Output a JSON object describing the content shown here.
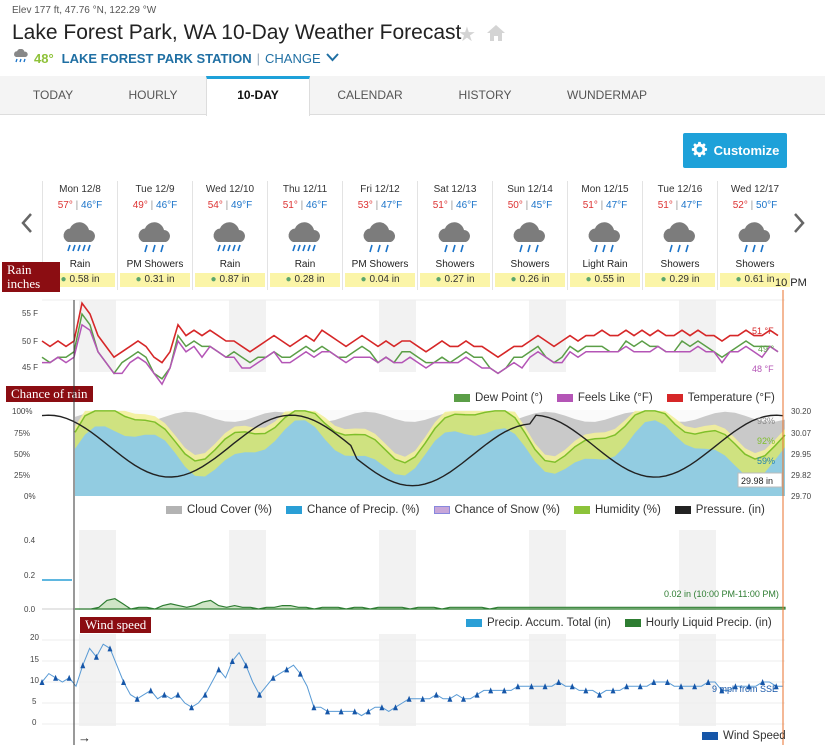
{
  "header": {
    "elev": "Elev 177 ft, 47.76 °N, 122.29 °W",
    "title": "Lake Forest Park, WA 10-Day Weather Forecast",
    "current_temp": "48°",
    "station": "LAKE FOREST PARK STATION",
    "separator": "|",
    "change_label": "CHANGE"
  },
  "tabs": [
    {
      "label": "TODAY",
      "active": false
    },
    {
      "label": "HOURLY",
      "active": false
    },
    {
      "label": "10-DAY",
      "active": true
    },
    {
      "label": "CALENDAR",
      "active": false
    },
    {
      "label": "HISTORY",
      "active": false
    },
    {
      "label": "WUNDERMAP",
      "active": false
    }
  ],
  "customize_label": "Customize",
  "days": [
    {
      "label": "Mon 12/8",
      "hi": "57°",
      "lo": "46°F",
      "cond": "Rain",
      "precip": "0.58 in",
      "icon": "rain-heavy-icon"
    },
    {
      "label": "Tue 12/9",
      "hi": "49°",
      "lo": "46°F",
      "cond": "PM Showers",
      "precip": "0.31 in",
      "icon": "showers-icon"
    },
    {
      "label": "Wed 12/10",
      "hi": "54°",
      "lo": "49°F",
      "cond": "Rain",
      "precip": "0.87 in",
      "icon": "rain-heavy-icon"
    },
    {
      "label": "Thu 12/11",
      "hi": "51°",
      "lo": "46°F",
      "cond": "Rain",
      "precip": "0.28 in",
      "icon": "rain-heavy-icon"
    },
    {
      "label": "Fri 12/12",
      "hi": "53°",
      "lo": "47°F",
      "cond": "PM Showers",
      "precip": "0.04 in",
      "icon": "showers-icon"
    },
    {
      "label": "Sat 12/13",
      "hi": "51°",
      "lo": "46°F",
      "cond": "Showers",
      "precip": "0.27 in",
      "icon": "showers-icon"
    },
    {
      "label": "Sun 12/14",
      "hi": "50°",
      "lo": "45°F",
      "cond": "Showers",
      "precip": "0.26 in",
      "icon": "showers-icon"
    },
    {
      "label": "Mon 12/15",
      "hi": "51°",
      "lo": "47°F",
      "cond": "Light Rain",
      "precip": "0.55 in",
      "icon": "showers-icon"
    },
    {
      "label": "Tue 12/16",
      "hi": "51°",
      "lo": "47°F",
      "cond": "Showers",
      "precip": "0.29 in",
      "icon": "showers-icon"
    },
    {
      "label": "Wed 12/17",
      "hi": "52°",
      "lo": "50°F",
      "cond": "Showers",
      "precip": "0.61 in",
      "icon": "showers-icon"
    }
  ],
  "time_label": "10 PM",
  "annotations": {
    "rain_inches": "Rain inches",
    "chance_of_rain": "Chance of rain",
    "wind_speed": "Wind speed"
  },
  "temp_chart": {
    "y_ticks": [
      "55 F",
      "50 F",
      "45 F"
    ],
    "end_labels": {
      "temperature": "51 °F",
      "dew_point": "49 °",
      "feels_like": "48 °F"
    },
    "legend": [
      "Dew Point (°)",
      "Feels Like (°F)",
      "Temperature (°F)"
    ],
    "colors": {
      "temperature": "#d62728",
      "feels_like": "#b455b6",
      "dew_point": "#5b9e47"
    }
  },
  "cloud_chart": {
    "y_ticks_left": [
      "100%",
      "75%",
      "50%",
      "25%",
      "0%"
    ],
    "y_ticks_right": [
      "30.20",
      "30.07",
      "29.95",
      "29.82",
      "29.70"
    ],
    "end_labels": {
      "cloud": "93%",
      "humidity": "92%",
      "precip": "59%",
      "pressure": "29.98 in"
    },
    "legend": [
      "Cloud Cover (%)",
      "Chance of Precip. (%)",
      "Chance of Snow (%)",
      "Humidity (%)",
      "Pressure. (in)"
    ],
    "colors": {
      "cloud": "#c6c6c6",
      "precip": "#8ecae6",
      "snow": "#c7a6d9",
      "humidity": "#c9e07a",
      "pressure": "#222222",
      "yellow": "#f2ef9a"
    }
  },
  "precip_chart": {
    "y_ticks": [
      "0.4",
      "0.2",
      "0.0"
    ],
    "note": "0.02 in (10:00 PM-11:00 PM)",
    "legend": [
      "Precip. Accum. Total (in)",
      "Hourly Liquid Precip. (in)"
    ],
    "colors": {
      "accum": "#2a9fd6",
      "hourly": "#2e7d32"
    }
  },
  "wind_chart": {
    "y_ticks": [
      "20",
      "15",
      "10",
      "5",
      "0"
    ],
    "note": "9 mph from SSE",
    "legend": [
      "Wind Speed"
    ],
    "color": "#1656a8",
    "series": [
      10,
      12,
      11,
      10,
      11,
      9,
      14,
      18,
      16,
      19,
      18,
      14,
      10,
      7,
      6,
      7,
      8,
      6,
      7,
      6,
      7,
      5,
      4,
      5,
      7,
      10,
      13,
      11,
      15,
      17,
      14,
      10,
      7,
      9,
      11,
      12,
      13,
      14,
      12,
      9,
      4,
      4,
      3,
      3,
      3,
      3,
      3,
      2,
      3,
      4,
      4,
      3,
      4,
      5,
      6,
      6,
      6,
      6,
      7,
      6,
      6,
      7,
      6,
      6,
      7,
      8,
      8,
      8,
      8,
      8,
      9,
      9,
      9,
      9,
      9,
      9,
      10,
      9,
      9,
      8,
      8,
      8,
      7,
      8,
      8,
      8,
      9,
      9,
      9,
      9,
      10,
      10,
      10,
      9,
      9,
      9,
      9,
      9,
      10,
      10,
      8,
      8,
      9,
      9,
      9,
      9,
      10,
      10,
      9,
      9
    ]
  },
  "arrow_label": "→"
}
